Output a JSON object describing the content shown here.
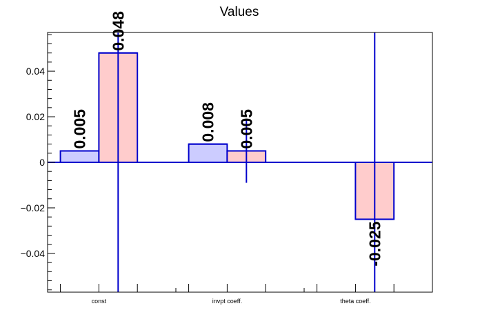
{
  "chart_data": {
    "type": "bar",
    "title": "Values",
    "xlabel": "",
    "ylabel": "",
    "categories": [
      "const",
      "invpt coeff.",
      "theta coeff."
    ],
    "ylim": [
      -0.057,
      0.057
    ],
    "yticks": [
      -0.04,
      -0.02,
      0,
      0.02,
      0.04
    ],
    "ytick_labels": [
      "−0.04",
      "−0.02",
      "0",
      "0.02",
      "0.04"
    ],
    "grid": false,
    "legend": "none",
    "series": [
      {
        "color": "#ccccff",
        "values": [
          0.005,
          0.008,
          null
        ],
        "labels": [
          "0.005",
          "0.008",
          ""
        ],
        "errors": [
          0,
          0,
          0
        ]
      },
      {
        "color": "#ffcccc",
        "values": [
          0.048,
          0.005,
          -0.025
        ],
        "labels": [
          "0.048",
          "0.005",
          "-0.025"
        ],
        "errors": [
          0.2,
          0.014,
          0.2
        ]
      }
    ],
    "error_bar_color": "#0000cc",
    "bar_edge_color": "#0000cc"
  }
}
